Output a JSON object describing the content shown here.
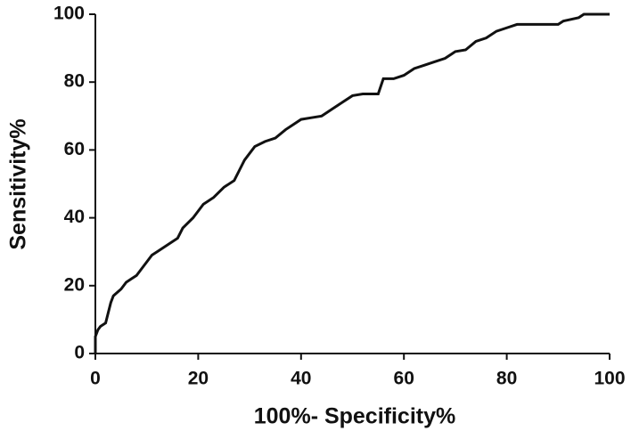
{
  "chart_data": {
    "type": "line",
    "x_label": "100%- Specificity%",
    "y_label": "Sensitivity%",
    "x": [
      0,
      0,
      0.5,
      1,
      2,
      2.5,
      3,
      3.5,
      5,
      6,
      7,
      8,
      9,
      10,
      11,
      12,
      14,
      16,
      17,
      19,
      20,
      21,
      23,
      25,
      27,
      28,
      29,
      30,
      31,
      33,
      35,
      37,
      38,
      40,
      42,
      44,
      46,
      48,
      50,
      52,
      55,
      56,
      58,
      60,
      62,
      64,
      66,
      68,
      70,
      72,
      74,
      76,
      78,
      80,
      82,
      90,
      91,
      94,
      95,
      100
    ],
    "values": [
      0,
      5,
      7,
      8,
      9,
      12,
      15,
      17,
      19,
      21,
      22,
      23,
      25,
      27,
      29,
      30,
      32,
      34,
      37,
      40,
      42,
      44,
      46,
      49,
      51,
      54,
      57,
      59,
      61,
      62.5,
      63.5,
      66,
      67,
      69,
      69.5,
      70,
      72,
      74,
      76,
      76.5,
      76.5,
      81,
      81,
      82,
      84,
      85,
      86,
      87,
      89,
      89.5,
      92,
      93,
      95,
      96,
      97,
      97,
      98,
      99,
      100,
      100
    ],
    "color": "#111111",
    "xlim": [
      0,
      100
    ],
    "xticks": [
      0,
      20,
      40,
      60,
      80,
      100
    ],
    "ylim": [
      0,
      100
    ],
    "yticks": [
      0,
      20,
      40,
      60,
      80,
      100
    ],
    "grid": false
  }
}
